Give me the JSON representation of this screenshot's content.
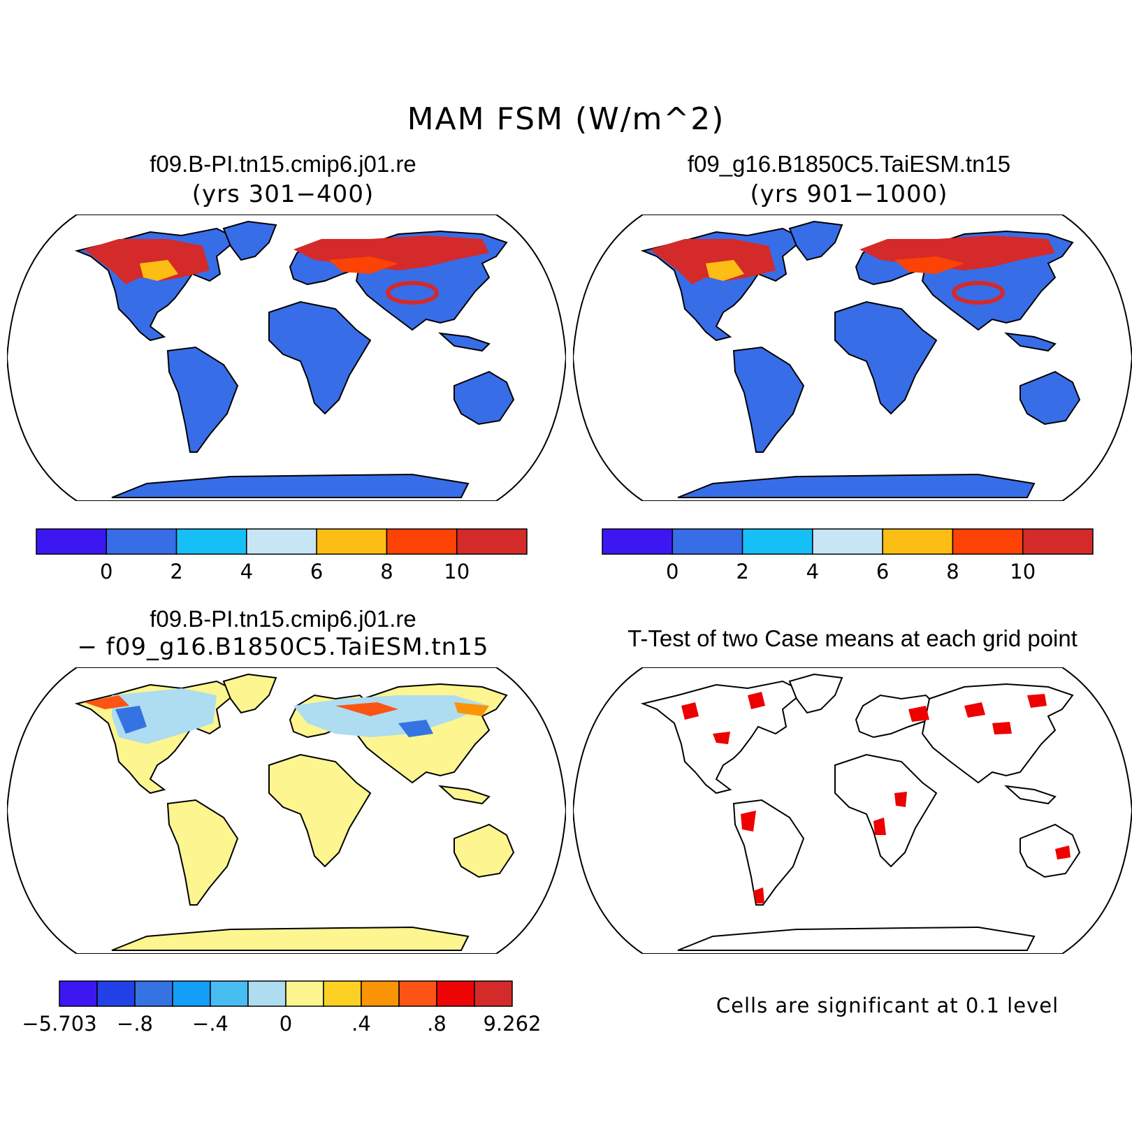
{
  "figure_title": "MAM FSM (W/m^2)",
  "panels": [
    {
      "title": "f09.B-PI.tn15.cmip6.j01.re",
      "subtitle": "(yrs 301−400)"
    },
    {
      "title": "f09_g16.B1850C5.TaiESM.tn15",
      "subtitle": "(yrs 901−1000)"
    },
    {
      "title": "f09.B-PI.tn15.cmip6.j01.re",
      "subtitle": "− f09_g16.B1850C5.TaiESM.tn15"
    },
    {
      "title": "T-Test of two Case means at each grid point",
      "note": "Cells are significant at 0.1 level"
    }
  ],
  "colorbars": {
    "mean": {
      "colors": [
        "#3d17f2",
        "#386de8",
        "#17bff7",
        "#c7e6f5",
        "#fcbd14",
        "#fc4204",
        "#d42a2a"
      ],
      "labels": [
        "0",
        "2",
        "4",
        "6",
        "8",
        "10"
      ]
    },
    "diff": {
      "colors": [
        "#3d17f2",
        "#2242e8",
        "#3573e3",
        "#139ef7",
        "#47bdf2",
        "#aedcf0",
        "#fcf590",
        "#fcd124",
        "#fc9407",
        "#fc5414",
        "#ee0505",
        "#d42a2a"
      ],
      "labels": [
        "−5.703",
        "−.8",
        "−.4",
        "0",
        ".4",
        ".8",
        "9.262"
      ]
    }
  },
  "map_fill": {
    "mean_land": "#386de8",
    "mean_warm": "#fc4204",
    "mean_hot": "#d42a2a",
    "mean_orange": "#fcbd14",
    "mean_light": "#c7e6f5",
    "diff_land": "#fcf590",
    "diff_light": "#aedcf0",
    "diff_blue": "#3573e3",
    "diff_red": "#fc5414",
    "ttest_sig": "#ee0000"
  }
}
